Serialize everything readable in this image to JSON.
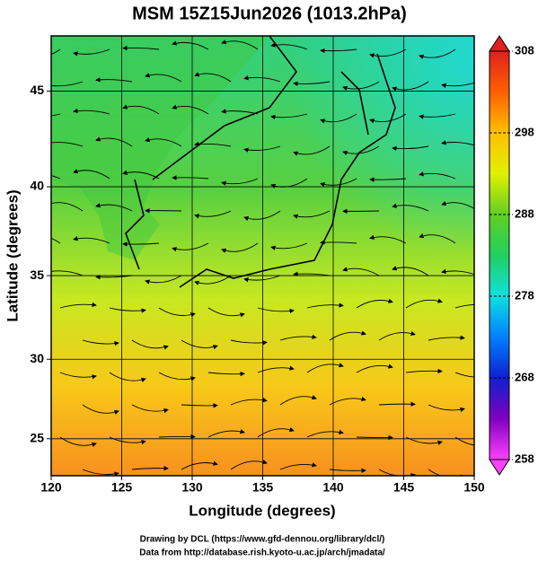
{
  "chart_data": {
    "type": "map",
    "title": "MSM 15Z15Jun2026 (1013.2hPa)",
    "x_label": "Longitude (degrees)",
    "y_label": "Latitude  (degrees)",
    "xlim": [
      120,
      150
    ],
    "xticks": [
      120,
      125,
      130,
      135,
      140,
      145,
      150
    ],
    "ylim": [
      22.6,
      47.7
    ],
    "yticks": [
      25,
      30,
      35,
      40,
      45
    ],
    "projection": "mercator",
    "grid": true,
    "colorbar": {
      "lim": [
        258,
        308
      ],
      "ticks": [
        258,
        268,
        278,
        288,
        298,
        308
      ],
      "colors": [
        "#ff40ff",
        "#8000c0",
        "#1020d0",
        "#0080ff",
        "#10e0e0",
        "#20d060",
        "#60d020",
        "#e0f000",
        "#ffc000",
        "#ff6000",
        "#e02020"
      ]
    },
    "credits": [
      "Drawing by DCL (https://www.gfd-dennou.org/library/dcl/)",
      "Data from http://database.rish.kyoto-u.ac.jp/arch/jmadata/"
    ]
  }
}
